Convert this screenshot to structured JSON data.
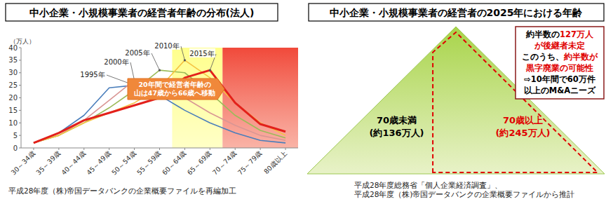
{
  "chart_data": [
    {
      "type": "line",
      "title": "中小企業・小規模事業者の経営者年齢の分布(法人)",
      "y_label": "（万人）",
      "categories": [
        "30～34歳",
        "35～39歳",
        "40～44歳",
        "45～49歳",
        "50～54歳",
        "55～59歳",
        "60～64歳",
        "65～69歳",
        "70～74歳",
        "75～79歳",
        "80歳以上"
      ],
      "series": [
        {
          "name": "1995年",
          "color": "#4a7ebb",
          "values": [
            2,
            6,
            13,
            24,
            25,
            21,
            15,
            10,
            6,
            3,
            2
          ]
        },
        {
          "name": "2000年",
          "color": "#d99694",
          "values": [
            2,
            5,
            11,
            19,
            27,
            26,
            20,
            14,
            9,
            5,
            3
          ]
        },
        {
          "name": "2005年",
          "color": "#9bbb59",
          "values": [
            2,
            5,
            10,
            16,
            23,
            31,
            30,
            22,
            13,
            7,
            4
          ]
        },
        {
          "name": "2010年",
          "color": "#f5c342",
          "values": [
            2,
            5,
            10,
            14,
            18,
            24,
            35,
            28,
            18,
            10,
            5
          ]
        },
        {
          "name": "2015年",
          "color": "#e3201b",
          "values": [
            2,
            6,
            11,
            14,
            17,
            20,
            28,
            31,
            18,
            9.5,
            6.5
          ]
        }
      ],
      "ylim": [
        0,
        40
      ],
      "yticks": [
        0,
        5,
        10,
        15,
        20,
        25,
        30,
        35,
        40
      ],
      "grid": false,
      "annotation": [
        "20年間で経営者年齢の",
        "山は47歳から66歳へ移動"
      ],
      "source": "平成28年度（株)帝国データバンクの企業概要ファイルを再編加工"
    },
    {
      "type": "pyramid",
      "title": "中小企業・小規模事業者の経営者の2025年における年齢",
      "categories": [
        "70歳未満",
        "70歳以上"
      ],
      "values": [
        136,
        245
      ],
      "value_labels": [
        "(約136万人)",
        "(約245万人)"
      ],
      "colors": [
        "#000000",
        "#e00000"
      ],
      "callout": [
        [
          {
            "text": "約半数の",
            "color": "#000000"
          },
          {
            "text": "127万人",
            "color": "#e00000"
          }
        ],
        [
          {
            "text": "が後継者未定",
            "color": "#e00000"
          }
        ],
        [
          {
            "text": "このうち、",
            "color": "#000000"
          },
          {
            "text": "約半数が",
            "color": "#e00000"
          }
        ],
        [
          {
            "text": "黒字廃業の可能性",
            "color": "#e00000"
          }
        ],
        [
          {
            "text": "⇨10年間で60万件",
            "color": "#000000"
          }
        ],
        [
          {
            "text": "以上のM&Aニーズ",
            "color": "#000000"
          }
        ]
      ],
      "source": [
        "平成28年度総務省「個人企業経済調査」、",
        "平成28年度（株)帝国データバンクの企業概要ファイルから推計"
      ]
    }
  ]
}
